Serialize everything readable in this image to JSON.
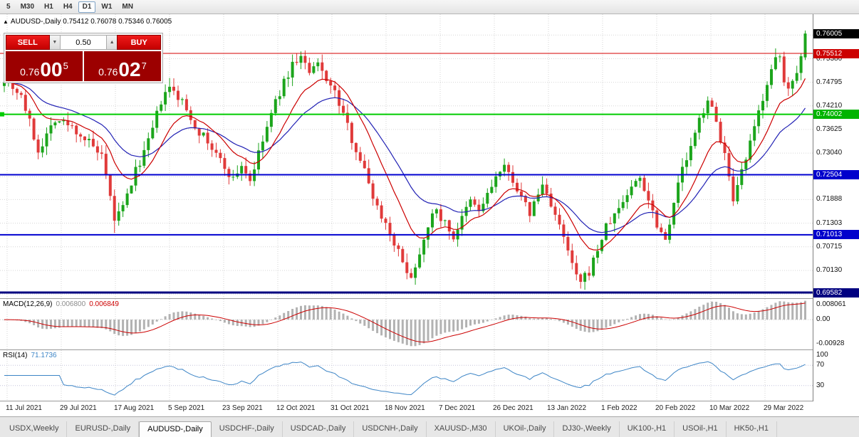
{
  "toolbar": {
    "timeframes": [
      {
        "label": "5",
        "active": false
      },
      {
        "label": "M30",
        "active": false
      },
      {
        "label": "H1",
        "active": false
      },
      {
        "label": "H4",
        "active": false
      },
      {
        "label": "D1",
        "active": true
      },
      {
        "label": "W1",
        "active": false
      },
      {
        "label": "MN",
        "active": false
      }
    ]
  },
  "symbol_header": {
    "arrow": "▲",
    "text": "AUDUSD-,Daily  0.75412 0.76078 0.75346 0.76005"
  },
  "trade_panel": {
    "sell_label": "SELL",
    "buy_label": "BUY",
    "volume": "0.50",
    "spinner_down": "▼",
    "spinner_up": "▲",
    "bid": {
      "base": "0.76",
      "pips": "00",
      "pip_sup": "5"
    },
    "ask": {
      "base": "0.76",
      "pips": "02",
      "pip_sup": "7"
    }
  },
  "price_scale": {
    "plain": [
      {
        "text": "0.75380",
        "price": 0.7538
      },
      {
        "text": "0.74795",
        "price": 0.74795
      },
      {
        "text": "0.74210",
        "price": 0.7421
      },
      {
        "text": "0.73625",
        "price": 0.73625
      },
      {
        "text": "0.73040",
        "price": 0.7304
      },
      {
        "text": "0.71888",
        "price": 0.71888
      },
      {
        "text": "0.71303",
        "price": 0.71303
      },
      {
        "text": "0.70715",
        "price": 0.70715
      },
      {
        "text": "0.70130",
        "price": 0.7013
      }
    ],
    "badges": [
      {
        "text": "0.76005",
        "price": 0.76005,
        "color": "#000000"
      },
      {
        "text": "0.75512",
        "price": 0.75512,
        "color": "#cc0000"
      },
      {
        "text": "0.74002",
        "price": 0.74002,
        "color": "#00b400"
      },
      {
        "text": "0.72504",
        "price": 0.72504,
        "color": "#0000cc"
      },
      {
        "text": "0.71013",
        "price": 0.71013,
        "color": "#0000cc"
      },
      {
        "text": "0.69582",
        "price": 0.69582,
        "color": "#000080"
      }
    ]
  },
  "main_chart": {
    "hlines": [
      {
        "price": 0.75512,
        "color": "#d40000",
        "width": 1
      },
      {
        "price": 0.74002,
        "color": "#00cc00",
        "width": 2
      },
      {
        "price": 0.72504,
        "color": "#0000d0",
        "width": 2
      },
      {
        "price": 0.71013,
        "color": "#0000d0",
        "width": 2
      },
      {
        "price": 0.69582,
        "color": "#000080",
        "width": 3
      }
    ]
  },
  "chart_data": {
    "type": "candlestick",
    "symbol": "AUDUSD-",
    "timeframe": "Daily",
    "last_bar_ohlc": {
      "open": 0.75412,
      "high": 0.76078,
      "low": 0.75346,
      "close": 0.76005
    },
    "bars_total": 190,
    "y_range": {
      "top": 0.76483,
      "bottom": 0.69441
    },
    "grid_prices": [
      0.75965,
      0.7538,
      0.74795,
      0.7421,
      0.73625,
      0.7304,
      0.72455,
      0.71888,
      0.71303,
      0.70715,
      0.7013,
      0.69545
    ],
    "close_anchors": [
      [
        0,
        0.749
      ],
      [
        4,
        0.7448
      ],
      [
        8,
        0.731
      ],
      [
        12,
        0.739
      ],
      [
        16,
        0.7368
      ],
      [
        20,
        0.733
      ],
      [
        23,
        0.7292
      ],
      [
        26,
        0.714
      ],
      [
        28,
        0.7168
      ],
      [
        31,
        0.726
      ],
      [
        34,
        0.733
      ],
      [
        37,
        0.7432
      ],
      [
        39,
        0.7465
      ],
      [
        42,
        0.743
      ],
      [
        45,
        0.7372
      ],
      [
        48,
        0.733
      ],
      [
        51,
        0.7285
      ],
      [
        54,
        0.7238
      ],
      [
        56,
        0.7275
      ],
      [
        58,
        0.7236
      ],
      [
        60,
        0.73
      ],
      [
        62,
        0.7368
      ],
      [
        64,
        0.743
      ],
      [
        66,
        0.7478
      ],
      [
        68,
        0.7524
      ],
      [
        70,
        0.7544
      ],
      [
        72,
        0.75
      ],
      [
        74,
        0.7524
      ],
      [
        76,
        0.749
      ],
      [
        78,
        0.7452
      ],
      [
        80,
        0.74
      ],
      [
        82,
        0.734
      ],
      [
        84,
        0.729
      ],
      [
        86,
        0.723
      ],
      [
        88,
        0.717
      ],
      [
        90,
        0.713
      ],
      [
        92,
        0.7085
      ],
      [
        94,
        0.703
      ],
      [
        96,
        0.7
      ],
      [
        97,
        0.702
      ],
      [
        98,
        0.706
      ],
      [
        100,
        0.713
      ],
      [
        102,
        0.716
      ],
      [
        104,
        0.713
      ],
      [
        106,
        0.7095
      ],
      [
        108,
        0.714
      ],
      [
        110,
        0.7185
      ],
      [
        112,
        0.716
      ],
      [
        114,
        0.72
      ],
      [
        116,
        0.7245
      ],
      [
        118,
        0.7265
      ],
      [
        120,
        0.724
      ],
      [
        122,
        0.719
      ],
      [
        124,
        0.7155
      ],
      [
        127,
        0.7225
      ],
      [
        129,
        0.718
      ],
      [
        131,
        0.712
      ],
      [
        133,
        0.706
      ],
      [
        135,
        0.6995
      ],
      [
        136,
        0.6982
      ],
      [
        138,
        0.701
      ],
      [
        140,
        0.7065
      ],
      [
        142,
        0.712
      ],
      [
        144,
        0.715
      ],
      [
        146,
        0.7185
      ],
      [
        148,
        0.722
      ],
      [
        150,
        0.7245
      ],
      [
        152,
        0.719
      ],
      [
        154,
        0.713
      ],
      [
        156,
        0.709
      ],
      [
        158,
        0.7185
      ],
      [
        160,
        0.7265
      ],
      [
        162,
        0.7315
      ],
      [
        164,
        0.7385
      ],
      [
        166,
        0.744
      ],
      [
        168,
        0.738
      ],
      [
        170,
        0.73
      ],
      [
        171,
        0.724
      ],
      [
        172,
        0.7175
      ],
      [
        174,
        0.7255
      ],
      [
        176,
        0.7325
      ],
      [
        178,
        0.7405
      ],
      [
        180,
        0.748
      ],
      [
        182,
        0.7532
      ],
      [
        183,
        0.754
      ],
      [
        184,
        0.748
      ],
      [
        185,
        0.746
      ],
      [
        186,
        0.7492
      ],
      [
        187,
        0.7512
      ],
      [
        188,
        0.7541
      ],
      [
        189,
        0.76005
      ]
    ],
    "overrides": [
      {
        "bar": 26,
        "low": 0.7106
      },
      {
        "bar": 70,
        "high": 0.7556
      },
      {
        "bar": 96,
        "low": 0.6993
      },
      {
        "bar": 136,
        "low": 0.6968
      },
      {
        "bar": 189,
        "open": 0.75412,
        "high": 0.76078,
        "low": 0.75346,
        "close": 0.76005
      }
    ],
    "indicators": {
      "ma_fast_period": 12,
      "ma_slow_period": 26,
      "macd": {
        "fast": 12,
        "slow": 26,
        "signal": 9
      },
      "rsi": {
        "period": 14,
        "levels": [
          70,
          30
        ]
      }
    }
  },
  "macd_panel": {
    "title": "MACD(12,26,9)",
    "value_main": "0.006800",
    "value_signal": "0.006849",
    "scale": [
      "0.008061",
      "0.00",
      "-0.00928"
    ]
  },
  "rsi_panel": {
    "title": "RSI(14)",
    "value": "71.1736",
    "scale": [
      {
        "label": "100",
        "value": 100
      },
      {
        "label": "70",
        "value": 70
      },
      {
        "label": "30",
        "value": 30
      }
    ]
  },
  "date_axis": {
    "labels": [
      "11 Jul 2021",
      "29 Jul 2021",
      "17 Aug 2021",
      "5 Sep 2021",
      "23 Sep 2021",
      "12 Oct 2021",
      "31 Oct 2021",
      "18 Nov 2021",
      "7 Dec 2021",
      "26 Dec 2021",
      "13 Jan 2022",
      "1 Feb 2022",
      "20 Feb 2022",
      "10 Mar 2022",
      "29 Mar 2022"
    ]
  },
  "tabs": [
    {
      "label": "USDX,Weekly",
      "active": false
    },
    {
      "label": "EURUSD-,Daily",
      "active": false
    },
    {
      "label": "AUDUSD-,Daily",
      "active": true
    },
    {
      "label": "USDCHF-,Daily",
      "active": false
    },
    {
      "label": "USDCAD-,Daily",
      "active": false
    },
    {
      "label": "USDCNH-,Daily",
      "active": false
    },
    {
      "label": "XAUUSD-,M30",
      "active": false
    },
    {
      "label": "UKOil-,Daily",
      "active": false
    },
    {
      "label": "DJ30-,Weekly",
      "active": false
    },
    {
      "label": "UK100-,H1",
      "active": false
    },
    {
      "label": "USOil-,H1",
      "active": false
    },
    {
      "label": "HK50-,H1",
      "active": false
    }
  ],
  "colors": {
    "up": "#1ca51c",
    "down": "#e03a3a",
    "ma_fast": "#cc0000",
    "ma_slow": "#2121b4",
    "macd_hist": "#b2b2b2",
    "macd_signal": "#cc0000",
    "rsi_line": "#3d85c6",
    "rsi_level": "#c4c4dc",
    "grid": "#d6d6d6"
  }
}
